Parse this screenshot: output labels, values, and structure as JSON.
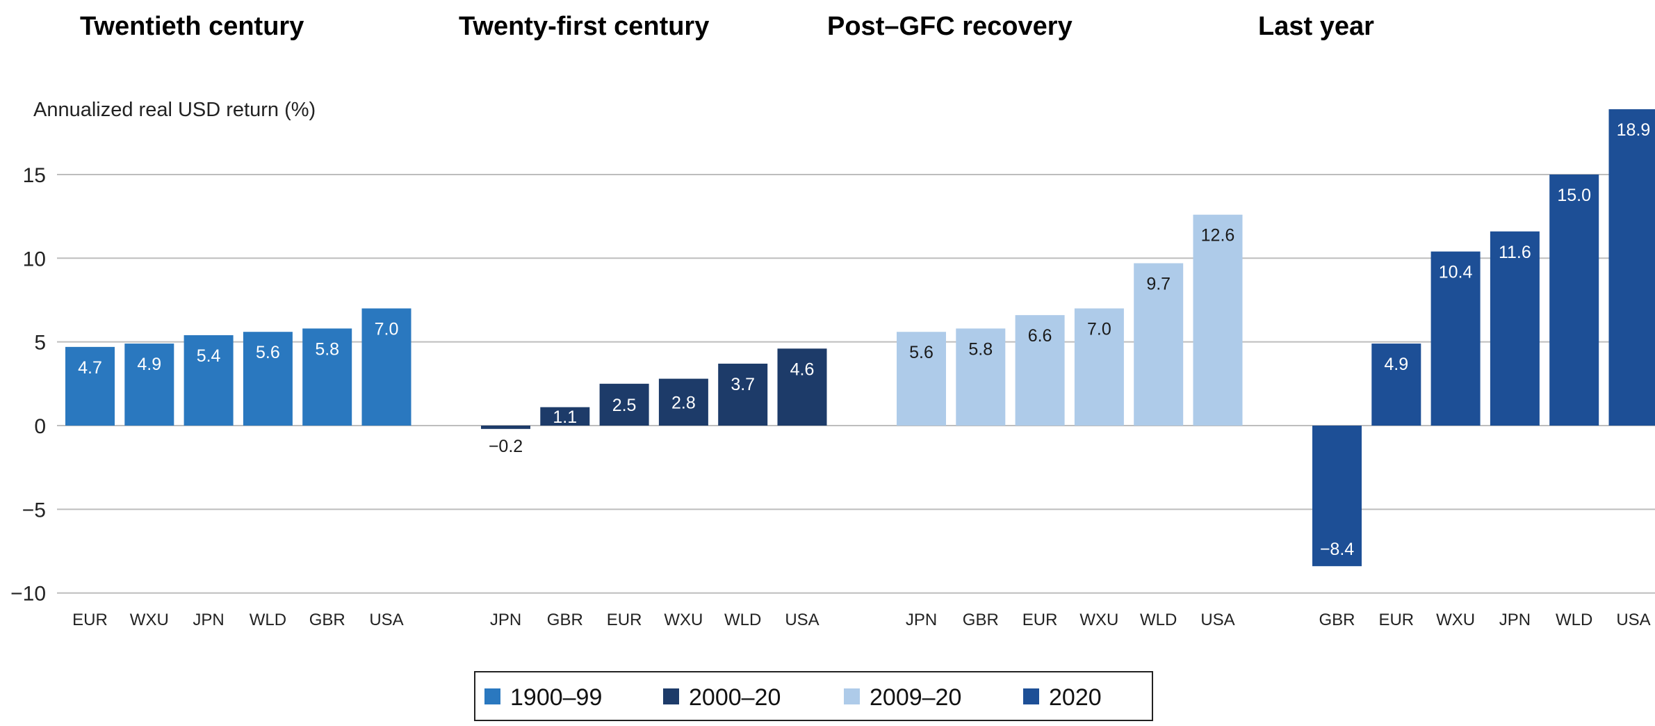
{
  "chart_data": {
    "type": "bar",
    "ylabel": "Annualized real USD return (%)",
    "ylim": [
      -10,
      19
    ],
    "yticks": [
      15,
      10,
      5,
      0,
      -5,
      -10
    ],
    "ytick_labels": [
      "15",
      "10",
      "5",
      "0",
      "−5",
      "−10"
    ],
    "grid": true,
    "legend_position": "bottom-center",
    "groups": [
      {
        "title": "Twentieth century",
        "series": "1900–99",
        "color": "#2a78bf",
        "label_color": "#ffffff",
        "categories": [
          "EUR",
          "WXU",
          "JPN",
          "WLD",
          "GBR",
          "USA"
        ],
        "values": [
          4.7,
          4.9,
          5.4,
          5.6,
          5.8,
          7.0
        ],
        "labels": [
          "4.7",
          "4.9",
          "5.4",
          "5.6",
          "5.8",
          "7.0"
        ]
      },
      {
        "title": "Twenty-first century",
        "series": "2000–20",
        "color": "#1d3b69",
        "label_color": "#ffffff",
        "categories": [
          "JPN",
          "GBR",
          "EUR",
          "WXU",
          "WLD",
          "USA"
        ],
        "values": [
          -0.2,
          1.1,
          2.5,
          2.8,
          3.7,
          4.6
        ],
        "labels": [
          "−0.2",
          "1.1",
          "2.5",
          "2.8",
          "3.7",
          "4.6"
        ]
      },
      {
        "title": "Post–GFC recovery",
        "series": "2009–20",
        "color": "#aecbe9",
        "label_color": "#1a1a1a",
        "categories": [
          "JPN",
          "GBR",
          "EUR",
          "WXU",
          "WLD",
          "USA"
        ],
        "values": [
          5.6,
          5.8,
          6.6,
          7.0,
          9.7,
          12.6
        ],
        "labels": [
          "5.6",
          "5.8",
          "6.6",
          "7.0",
          "9.7",
          "12.6"
        ]
      },
      {
        "title": "Last year",
        "series": "2020",
        "color": "#1d4f96",
        "label_color": "#ffffff",
        "categories": [
          "GBR",
          "EUR",
          "WXU",
          "JPN",
          "WLD",
          "USA"
        ],
        "values": [
          -8.4,
          4.9,
          10.4,
          11.6,
          15.0,
          18.9
        ],
        "labels": [
          "−8.4",
          "4.9",
          "10.4",
          "11.6",
          "15.0",
          "18.9"
        ]
      }
    ],
    "legend": [
      {
        "name": "1900–99",
        "color": "#2a78bf"
      },
      {
        "name": "2000–20",
        "color": "#1d3b69"
      },
      {
        "name": "2009–20",
        "color": "#aecbe9"
      },
      {
        "name": "2020",
        "color": "#1d4f96"
      }
    ]
  }
}
